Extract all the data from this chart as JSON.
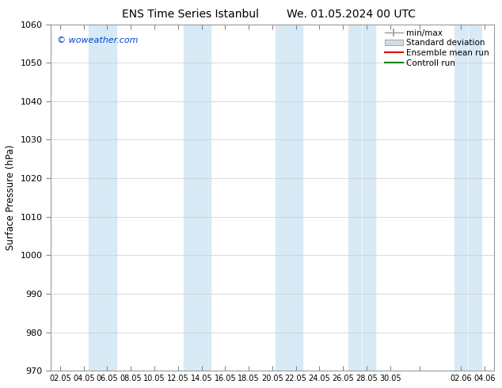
{
  "title_left": "ENS Time Series Istanbul",
  "title_right": "We. 01.05.2024 00 UTC",
  "ylabel": "Surface Pressure (hPa)",
  "ylim": [
    970,
    1060
  ],
  "yticks": [
    970,
    980,
    990,
    1000,
    1010,
    1020,
    1030,
    1040,
    1050,
    1060
  ],
  "xtick_labels": [
    "02.05",
    "04.05",
    "06.05",
    "08.05",
    "10.05",
    "12.05",
    "14.05",
    "16.05",
    "18.05",
    "20.05",
    "22.05",
    "24.05",
    "26.05",
    "28.05",
    "30.05",
    "",
    "02.06",
    "04.06"
  ],
  "copyright": "© woweather.com",
  "legend_entries": [
    "min/max",
    "Standard deviation",
    "Ensemble mean run",
    "Controll run"
  ],
  "band_color": "#d8eaf6",
  "background_color": "#ffffff",
  "fig_width": 6.34,
  "fig_height": 4.9,
  "dpi": 100
}
